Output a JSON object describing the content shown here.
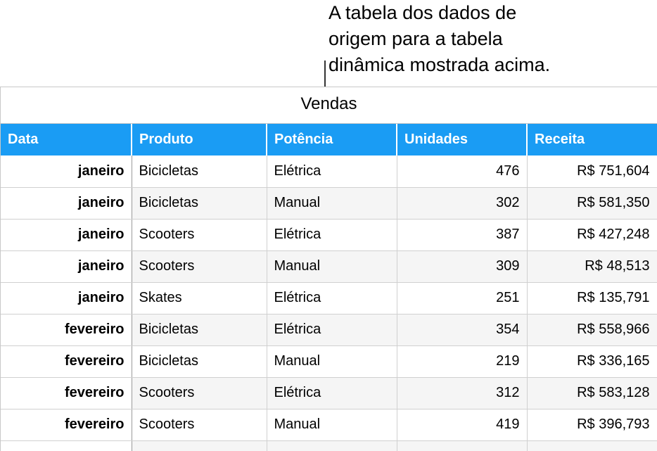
{
  "callout": {
    "lines": [
      "A tabela dos dados de",
      "origem para a tabela",
      "dinâmica mostrada acima."
    ]
  },
  "table": {
    "title": "Vendas",
    "headers": [
      "Data",
      "Produto",
      "Potência",
      "Unidades",
      "Receita"
    ],
    "rows": [
      [
        "janeiro",
        "Bicicletas",
        "Elétrica",
        "476",
        "R$ 751,604"
      ],
      [
        "janeiro",
        "Bicicletas",
        "Manual",
        "302",
        "R$ 581,350"
      ],
      [
        "janeiro",
        "Scooters",
        "Elétrica",
        "387",
        "R$ 427,248"
      ],
      [
        "janeiro",
        "Scooters",
        "Manual",
        "309",
        "R$ 48,513"
      ],
      [
        "janeiro",
        "Skates",
        "Elétrica",
        "251",
        "R$ 135,791"
      ],
      [
        "fevereiro",
        "Bicicletas",
        "Elétrica",
        "354",
        "R$ 558,966"
      ],
      [
        "fevereiro",
        "Bicicletas",
        "Manual",
        "219",
        "R$ 336,165"
      ],
      [
        "fevereiro",
        "Scooters",
        "Elétrica",
        "312",
        "R$ 583,128"
      ],
      [
        "fevereiro",
        "Scooters",
        "Manual",
        "419",
        "R$ 396,793"
      ]
    ]
  },
  "colors": {
    "header_bg": "#1a9cf4",
    "header_text": "#ffffff",
    "grid": "#d0d0d0",
    "alt_row": "#f5f5f5"
  }
}
